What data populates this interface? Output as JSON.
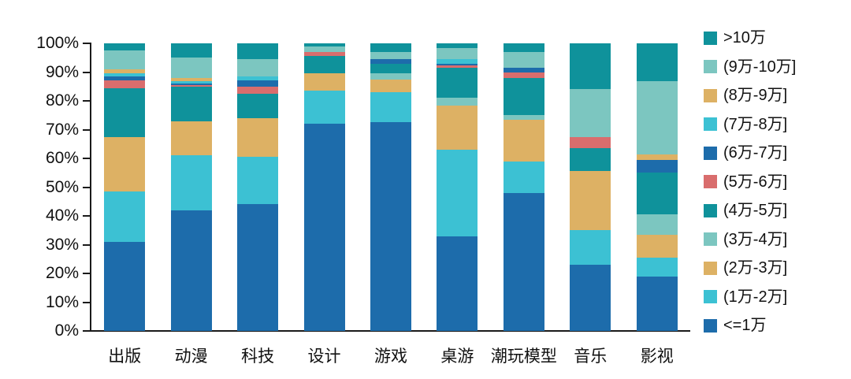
{
  "chart_data": {
    "type": "bar",
    "variant": "stacked-percent",
    "title": "",
    "xlabel": "",
    "ylabel": "",
    "ylim": [
      0,
      100
    ],
    "grid": false,
    "legend_position": "right",
    "y_ticks_top_to_bottom": [
      "100%",
      "90%",
      "80%",
      "70%",
      "60%",
      "50%",
      "40%",
      "30%",
      "20%",
      "10%",
      "0%"
    ],
    "categories": [
      "出版",
      "动漫",
      "科技",
      "设计",
      "游戏",
      "桌游",
      "潮玩模型",
      "音乐",
      "影视"
    ],
    "series_order": "bottom-to-top",
    "series": [
      {
        "name": "<=1万",
        "color": "#1d6cab",
        "values": [
          31,
          42,
          44,
          72,
          72.5,
          33,
          48,
          23,
          19
        ]
      },
      {
        "name": "(1万-2万]",
        "color": "#3cc1d3",
        "values": [
          17.5,
          19,
          16.5,
          11.5,
          10.5,
          30,
          11,
          12,
          6.5
        ]
      },
      {
        "name": "(2万-3万]",
        "color": "#ddb164",
        "values": [
          19,
          12,
          13.5,
          6,
          4.5,
          15.5,
          14.5,
          20.5,
          8
        ]
      },
      {
        "name": "(3万-4万]",
        "color": "#7cc6c0",
        "values": [
          0,
          0,
          0,
          0,
          2,
          2.5,
          1.5,
          0,
          7
        ]
      },
      {
        "name": "(4万-5万]",
        "color": "#0f929b",
        "values": [
          17,
          12,
          8.5,
          6,
          3.5,
          10.5,
          13,
          8,
          14.5
        ]
      },
      {
        "name": "(5万-6万]",
        "color": "#d96d6d",
        "values": [
          2.5,
          0.5,
          2.5,
          1.5,
          0,
          0.75,
          2,
          4,
          0
        ]
      },
      {
        "name": "(6万-7万]",
        "color": "#1d6cab",
        "values": [
          1.5,
          0.5,
          2,
          0,
          1.5,
          0.75,
          1.5,
          0,
          4.5
        ]
      },
      {
        "name": "(7万-8万]",
        "color": "#3cc1d3",
        "values": [
          1,
          1,
          1.5,
          0,
          0,
          1.5,
          0,
          0,
          0
        ]
      },
      {
        "name": "(8万-9万]",
        "color": "#ddb164",
        "values": [
          1.5,
          1,
          0,
          0,
          0,
          0,
          0,
          0,
          2
        ]
      },
      {
        "name": "(9万-10万]",
        "color": "#7cc6c0",
        "values": [
          6.5,
          7,
          6,
          2,
          2.5,
          4,
          5.5,
          16.5,
          25.5
        ]
      },
      {
        "name": ">10万",
        "color": "#0f929b",
        "values": [
          2.5,
          5,
          5.5,
          1,
          3,
          1.5,
          3,
          16,
          13
        ]
      }
    ],
    "legend_top_to_bottom": [
      ">10万",
      "(9万-10万]",
      "(8万-9万]",
      "(7万-8万]",
      "(6万-7万]",
      "(5万-6万]",
      "(4万-5万]",
      "(3万-4万]",
      "(2万-3万]",
      "(1万-2万]",
      "<=1万"
    ]
  },
  "colors": {
    "axis": "#1a1a1a",
    "text": "#111111",
    "background": "#ffffff"
  }
}
